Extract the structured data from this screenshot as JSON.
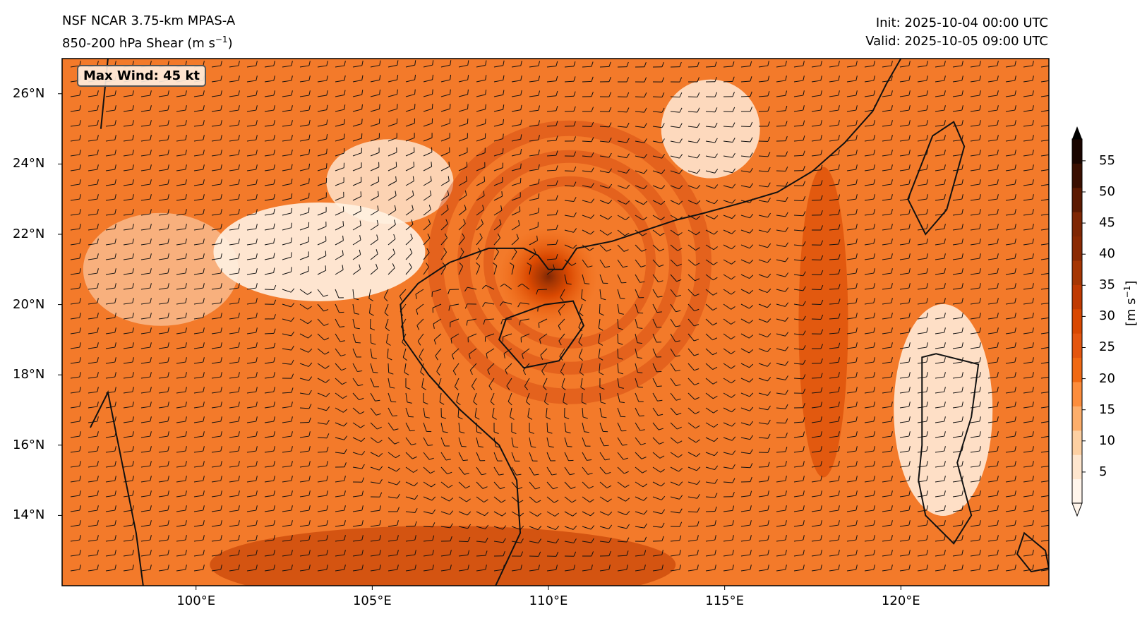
{
  "header": {
    "model": "NSF NCAR 3.75-km MPAS-A",
    "field_prefix": "850-200 hPa Shear (m s",
    "field_sup": "−1",
    "field_suffix": ")",
    "init": "Init: 2025-10-04 00:00 UTC",
    "valid": "Valid: 2025-10-05 09:00 UTC"
  },
  "annotation": {
    "max_wind": "Max Wind: 45 kt"
  },
  "axes": {
    "lat_ticks": [
      {
        "value": 26,
        "label": "26°N"
      },
      {
        "value": 24,
        "label": "24°N"
      },
      {
        "value": 22,
        "label": "22°N"
      },
      {
        "value": 20,
        "label": "20°N"
      },
      {
        "value": 18,
        "label": "18°N"
      },
      {
        "value": 16,
        "label": "16°N"
      },
      {
        "value": 14,
        "label": "14°N"
      }
    ],
    "lon_ticks": [
      {
        "value": 100,
        "label": "100°E"
      },
      {
        "value": 105,
        "label": "105°E"
      },
      {
        "value": 110,
        "label": "110°E"
      },
      {
        "value": 115,
        "label": "115°E"
      },
      {
        "value": 120,
        "label": "120°E"
      }
    ],
    "lat_range": [
      12,
      27
    ],
    "lon_range": [
      96.2,
      124.2
    ]
  },
  "colorbar": {
    "ticks": [
      "5",
      "10",
      "15",
      "20",
      "25",
      "30",
      "35",
      "40",
      "45",
      "50",
      "55"
    ],
    "unit_prefix": "[m s",
    "unit_sup": "−1",
    "unit_suffix": "]",
    "colors": [
      "#fff5eb",
      "#fee6ce",
      "#fdd0a2",
      "#fdae6b",
      "#fd8d3c",
      "#f16913",
      "#e5560f",
      "#d94801",
      "#c03a02",
      "#a63603",
      "#8b2a03",
      "#7f2704",
      "#5c1a02",
      "#3a0f01",
      "#1a0500"
    ]
  },
  "map": {
    "storm_center": {
      "lon": 110.0,
      "lat": 20.8
    },
    "background_color": "#f37a2a",
    "ring_color": "#d2440e",
    "core_color": "#9e2508",
    "calm_color": "#fff5eb"
  }
}
